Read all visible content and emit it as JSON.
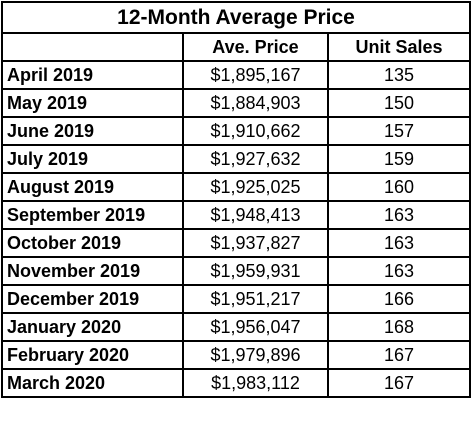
{
  "chart_data": {
    "type": "table",
    "title": "12-Month Average Price",
    "columns": [
      "",
      "Ave. Price",
      "Unit Sales"
    ],
    "rows": [
      {
        "month": "April 2019",
        "price": "$1,895,167",
        "units": "135"
      },
      {
        "month": "May 2019",
        "price": "$1,884,903",
        "units": "150"
      },
      {
        "month": "June 2019",
        "price": "$1,910,662",
        "units": "157"
      },
      {
        "month": "July 2019",
        "price": "$1,927,632",
        "units": "159"
      },
      {
        "month": "August 2019",
        "price": "$1,925,025",
        "units": "160"
      },
      {
        "month": "September 2019",
        "price": "$1,948,413",
        "units": "163"
      },
      {
        "month": "October 2019",
        "price": "$1,937,827",
        "units": "163"
      },
      {
        "month": "November 2019",
        "price": "$1,959,931",
        "units": "163"
      },
      {
        "month": "December 2019",
        "price": "$1,951,217",
        "units": "166"
      },
      {
        "month": "January 2020",
        "price": "$1,956,047",
        "units": "168"
      },
      {
        "month": "February 2020",
        "price": "$1,979,896",
        "units": "167"
      },
      {
        "month": "March 2020",
        "price": "$1,983,112",
        "units": "167"
      }
    ]
  }
}
